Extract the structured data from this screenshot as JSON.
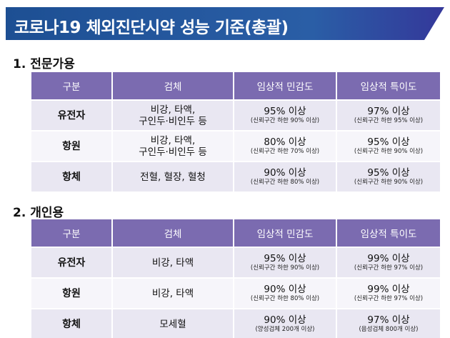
{
  "title": "코로나19 체외진단시약 성능 기준(총괄)",
  "headers": [
    "구분",
    "검체",
    "임상적 민감도",
    "임상적 특이도"
  ],
  "sections": [
    {
      "heading": "1. 전문가용",
      "rows": [
        {
          "category": "유전자",
          "specimen": [
            "비강, 타액,",
            "구인두·비인두 등"
          ],
          "sensitivity": "95% 이상",
          "sensitivity_note": "(신뢰구간 하한 90% 이상)",
          "specificity": "97% 이상",
          "specificity_note": "(신뢰구간 하한 95% 이상)"
        },
        {
          "category": "항원",
          "specimen": [
            "비강, 타액,",
            "구인두·비인두  등"
          ],
          "sensitivity": "80% 이상",
          "sensitivity_note": "(신뢰구간 하한 70% 이상)",
          "specificity": "95% 이상",
          "specificity_note": "(신뢰구간 하한 90% 이상)"
        },
        {
          "category": "항체",
          "specimen": [
            "전혈, 혈장, 혈청"
          ],
          "sensitivity": "90% 이상",
          "sensitivity_note": "(신뢰구간 하한 80% 이상)",
          "specificity": "95% 이상",
          "specificity_note": "(신뢰구간 하한 90% 이상)"
        }
      ]
    },
    {
      "heading": "2. 개인용",
      "rows": [
        {
          "category": "유전자",
          "specimen": [
            "비강, 타액"
          ],
          "sensitivity": "95% 이상",
          "sensitivity_note": "(신뢰구간 하한 90% 이상)",
          "specificity": "99% 이상",
          "specificity_note": "(신뢰구간 하한 97% 이상)"
        },
        {
          "category": "항원",
          "specimen": [
            "비강, 타액"
          ],
          "sensitivity": "90% 이상",
          "sensitivity_note": "(신뢰구간 하한 80% 이상)",
          "specificity": "99% 이상",
          "specificity_note": "(신뢰구간 하한 97% 이상)"
        },
        {
          "category": "항체",
          "specimen": [
            "모세혈"
          ],
          "sensitivity": "90% 이상",
          "sensitivity_note": "(양성검체 200개 이상)",
          "specificity": "97% 이상",
          "specificity_note": "(음성검체 800개 이상)"
        }
      ]
    }
  ],
  "colors": {
    "banner": "#1d4f93",
    "header": "#7b6bb0",
    "row": "#e9e7f2"
  }
}
